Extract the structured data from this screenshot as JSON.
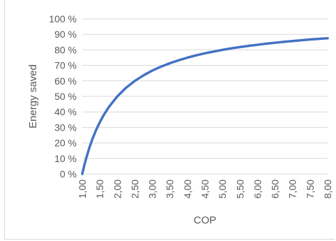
{
  "chart_data": {
    "type": "line",
    "title": "",
    "xlabel": "COP",
    "ylabel": "Energy saved",
    "xlim": [
      1.0,
      8.0
    ],
    "ylim": [
      0,
      100
    ],
    "x_ticks": [
      "1,00",
      "1,50",
      "2,00",
      "2,50",
      "3,00",
      "3,50",
      "4,00",
      "4,50",
      "5,00",
      "5,50",
      "6,00",
      "6,50",
      "7,00",
      "7,50",
      "8,00"
    ],
    "y_ticks": [
      "0 %",
      "10 %",
      "20 %",
      "30 %",
      "40 %",
      "50 %",
      "60 %",
      "70 %",
      "80 %",
      "90 %",
      "100 %"
    ],
    "grid": "horizontal",
    "legend": "none",
    "line_color": "#4472c4",
    "grid_color": "#d9d9d9",
    "series": [
      {
        "x": [
          1.0,
          1.05,
          1.1,
          1.2,
          1.3,
          1.4,
          1.5,
          1.6,
          1.75,
          2.0,
          2.25,
          2.5,
          2.75,
          3.0,
          3.25,
          3.5,
          3.75,
          4.0,
          4.25,
          4.5,
          4.75,
          5.0,
          5.25,
          5.5,
          5.75,
          6.0,
          6.25,
          6.5,
          6.75,
          7.0,
          7.25,
          7.5,
          7.75,
          8.0
        ],
        "y": [
          0,
          4.8,
          9.1,
          16.7,
          23.1,
          28.6,
          33.3,
          37.5,
          42.9,
          50.0,
          55.6,
          60.0,
          63.6,
          66.7,
          69.2,
          71.4,
          73.3,
          75.0,
          76.5,
          77.8,
          78.9,
          80.0,
          81.0,
          81.8,
          82.6,
          83.3,
          84.0,
          84.6,
          85.2,
          85.7,
          86.2,
          86.7,
          87.1,
          87.5
        ]
      }
    ]
  }
}
